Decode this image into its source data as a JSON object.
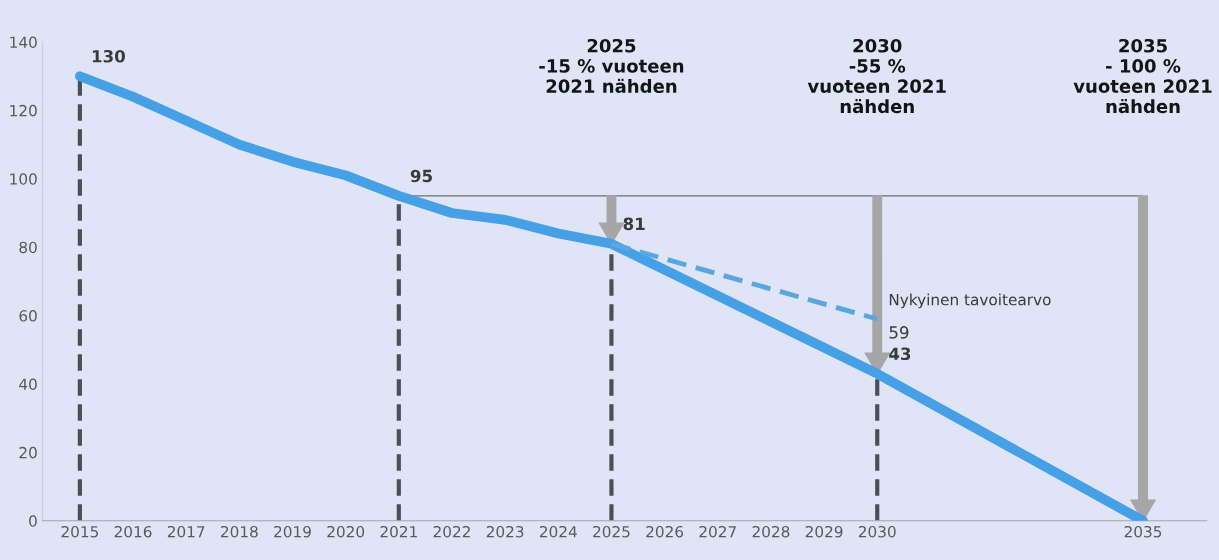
{
  "chart_data": {
    "type": "line",
    "x": [
      2015,
      2016,
      2017,
      2018,
      2019,
      2020,
      2021,
      2022,
      2023,
      2024,
      2025,
      2030,
      2035
    ],
    "series": [
      {
        "color": "#45a0e6",
        "line_style": "solid",
        "values": [
          130,
          124,
          117,
          110,
          105,
          101,
          95,
          90,
          88,
          84,
          81,
          43,
          0
        ],
        "value_labels": [
          "130",
          null,
          null,
          null,
          null,
          null,
          "95",
          null,
          null,
          null,
          "81",
          "43",
          null
        ]
      },
      {
        "color": "#5aa7e0",
        "line_style": "dashed",
        "x": [
          2025,
          2030
        ],
        "values": [
          81,
          59
        ],
        "value_labels": [
          null,
          "59"
        ]
      }
    ],
    "xlim": [
      2014.3,
      2036.2
    ],
    "xticks": [
      2015,
      2016,
      2017,
      2018,
      2019,
      2020,
      2021,
      2022,
      2023,
      2024,
      2025,
      2026,
      2027,
      2028,
      2029,
      2030,
      2035
    ],
    "ylim": [
      0,
      140
    ],
    "yticks": [
      0,
      20,
      40,
      60,
      80,
      100,
      120,
      140
    ],
    "grid": false,
    "legend": false,
    "marker": "none",
    "ref_lines": [
      {
        "axis": "x",
        "value": 2015,
        "color": "#4a4f57",
        "line_style": "dashed"
      },
      {
        "axis": "x",
        "value": 2021,
        "color": "#4a4f57",
        "line_style": "dashed"
      },
      {
        "axis": "x",
        "value": 2025,
        "color": "#4a4f57",
        "line_style": "dashed"
      },
      {
        "axis": "x",
        "value": 2030,
        "color": "#4a4f57",
        "line_style": "dashed"
      },
      {
        "axis": "y",
        "value": 95,
        "color": "#6b6f75",
        "line_style": "solid"
      }
    ],
    "annotations": [
      "2025\n-15 % vuoteen\n2021 nähden",
      "2030\n-55 %\nvuoteen 2021\nnähden",
      "2035\n- 100 %\nvuoteen 2021\nnähden",
      {
        "text": "Nykyinen tavoitearvo",
        "x": 2030,
        "y": 59
      }
    ]
  }
}
